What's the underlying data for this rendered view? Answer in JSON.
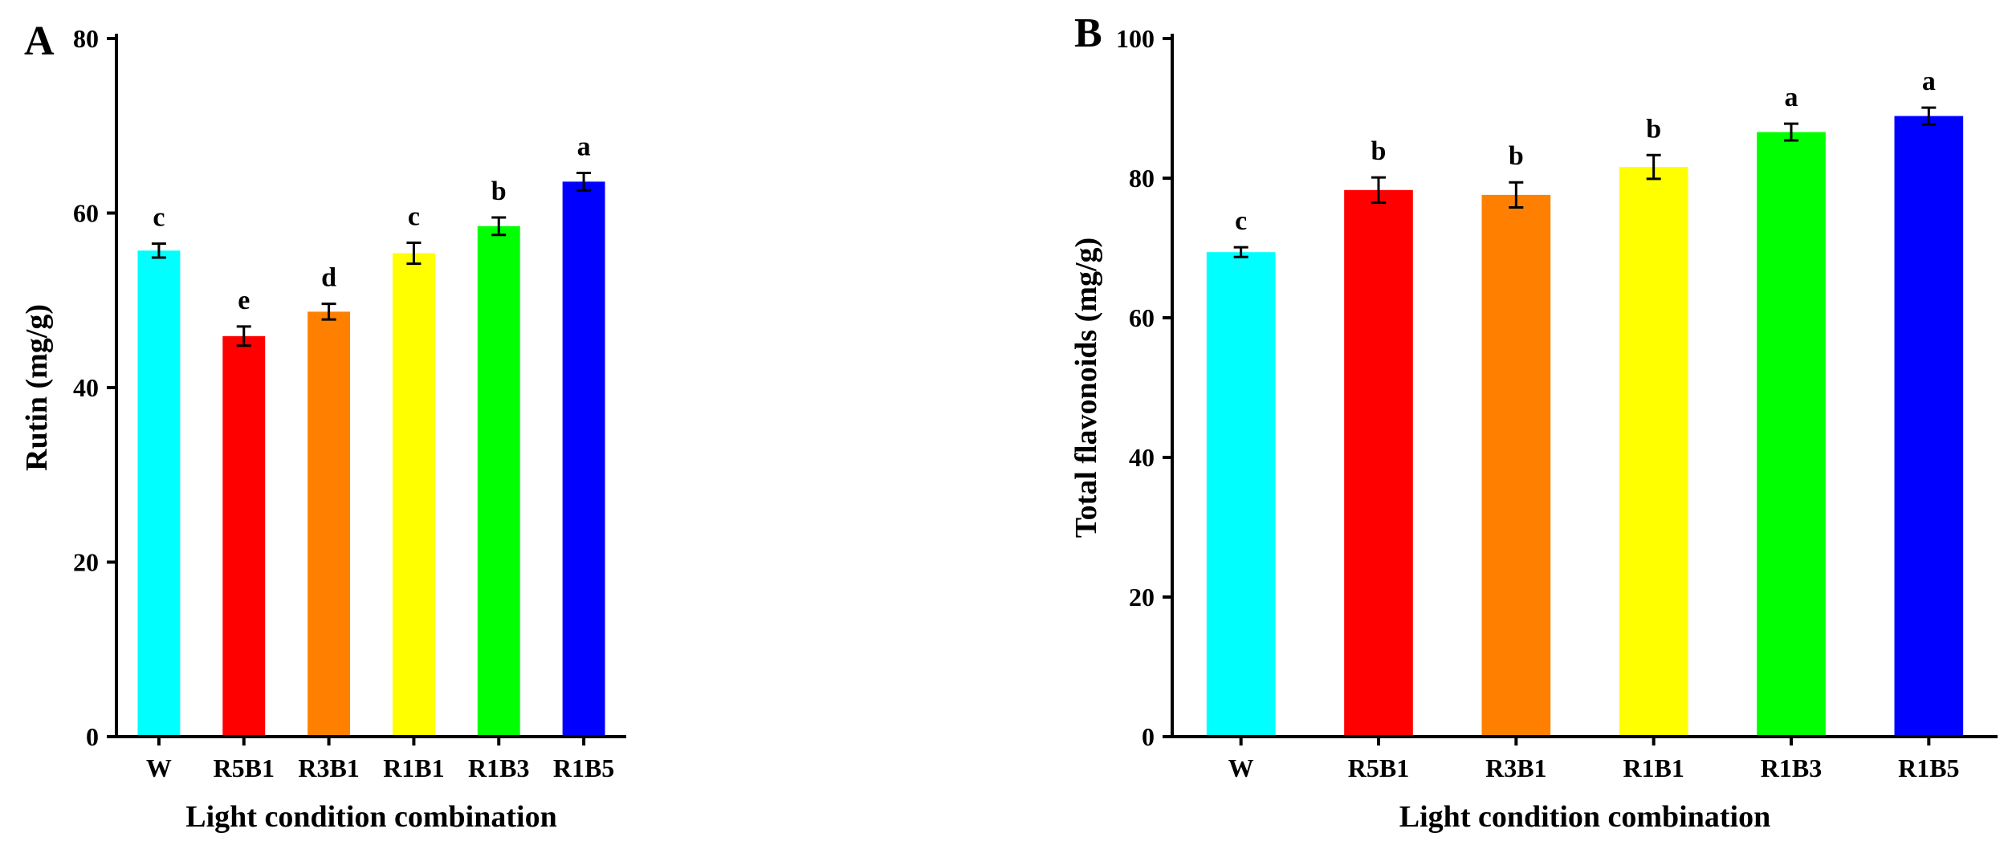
{
  "chart_data": [
    {
      "type": "bar",
      "panel": "A",
      "xlabel": "Light condition combination",
      "ylabel": "Rutin (mg/g)",
      "ylim": [
        0,
        80
      ],
      "yticks": [
        0,
        20,
        40,
        60,
        80
      ],
      "categories": [
        "W",
        "R5B1",
        "R3B1",
        "R1B1",
        "R1B3",
        "R1B5"
      ],
      "values": [
        55.7,
        45.9,
        48.7,
        55.4,
        58.5,
        63.6
      ],
      "errors": [
        0.8,
        1.1,
        0.9,
        1.2,
        1.0,
        1.0
      ],
      "significance": [
        "c",
        "e",
        "d",
        "c",
        "b",
        "a"
      ],
      "colors": [
        "#00FFFF",
        "#FF0000",
        "#FF8000",
        "#FFFF00",
        "#00FF00",
        "#0000FF"
      ]
    },
    {
      "type": "bar",
      "panel": "B",
      "xlabel": "Light condition combination",
      "ylabel": "Total flavonoids (mg/g)",
      "ylim": [
        0,
        100
      ],
      "yticks": [
        0,
        20,
        40,
        60,
        80,
        100
      ],
      "categories": [
        "W",
        "R5B1",
        "R3B1",
        "R1B1",
        "R1B3",
        "R1B5"
      ],
      "values": [
        69.4,
        78.3,
        77.6,
        81.6,
        86.6,
        88.9
      ],
      "errors": [
        0.7,
        1.8,
        1.8,
        1.7,
        1.2,
        1.2
      ],
      "significance": [
        "c",
        "b",
        "b",
        "b",
        "a",
        "a"
      ],
      "colors": [
        "#00FFFF",
        "#FF0000",
        "#FF8000",
        "#FFFF00",
        "#00FF00",
        "#0000FF"
      ]
    }
  ]
}
